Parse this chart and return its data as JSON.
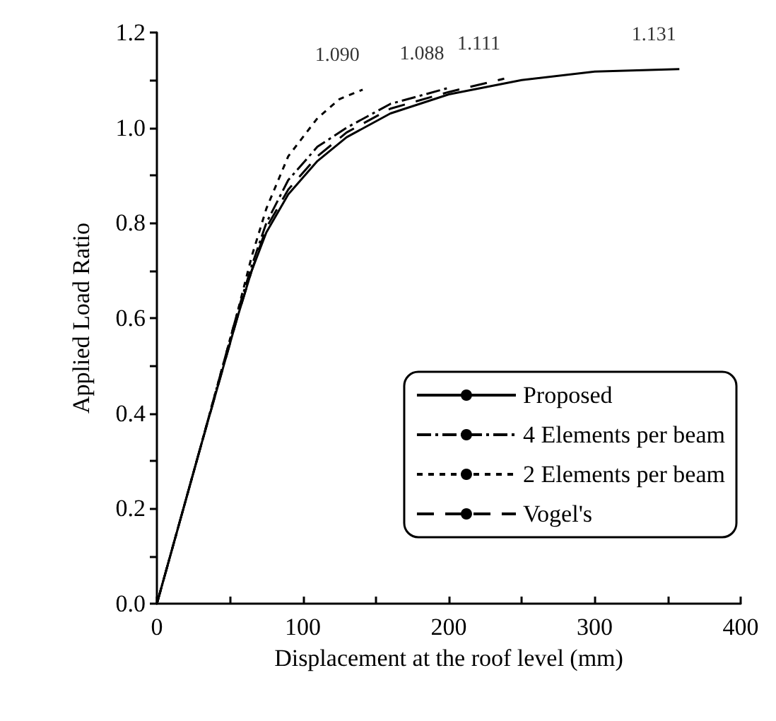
{
  "chart_data": {
    "type": "line",
    "xlabel": "Displacement at the roof level (mm)",
    "ylabel": "Applied Load Ratio",
    "xlim": [
      0,
      400
    ],
    "xticks": [
      0,
      {
        "value": 50,
        "label": null
      },
      100,
      {
        "value": 150,
        "label": null
      },
      200,
      {
        "value": 250,
        "label": null
      },
      300,
      {
        "value": 350,
        "label": null
      },
      400
    ],
    "ylim": [
      0,
      1.2
    ],
    "yticks": [
      {
        "value": 0,
        "label": "0.0"
      },
      {
        "value": 0.1,
        "label": null
      },
      0.2,
      {
        "value": 0.3,
        "label": null
      },
      0.4,
      {
        "value": 0.5,
        "label": null
      },
      0.6,
      {
        "value": 0.7,
        "label": null
      },
      0.8,
      {
        "value": 0.9,
        "label": null
      },
      {
        "value": 1,
        "label": "1.0"
      },
      {
        "value": 1.1,
        "label": null
      },
      1.2
    ],
    "grid": false,
    "legend": "right",
    "marker": "none",
    "series": [
      {
        "name": "Proposed",
        "color": "#000000",
        "line_style": "solid",
        "x": [
          0,
          30,
          55,
          65,
          75,
          90,
          110,
          130,
          160,
          200,
          250,
          300,
          358
        ],
        "values": [
          0,
          0.33,
          0.6,
          0.7,
          0.78,
          0.86,
          0.93,
          0.98,
          1.03,
          1.07,
          1.1,
          1.118,
          1.123
        ]
      },
      {
        "name": "4 Elements per beam",
        "color": "#000000",
        "line_style": "dashdot",
        "x": [
          0,
          30,
          55,
          65,
          75,
          90,
          110,
          130,
          160,
          199
        ],
        "values": [
          0,
          0.33,
          0.61,
          0.71,
          0.8,
          0.89,
          0.96,
          1.0,
          1.05,
          1.083
        ]
      },
      {
        "name": "2 Elements per beam",
        "color": "#000000",
        "line_style": "dashed",
        "x": [
          0,
          30,
          55,
          65,
          75,
          90,
          110,
          125,
          141
        ],
        "values": [
          0,
          0.33,
          0.61,
          0.73,
          0.83,
          0.94,
          1.02,
          1.06,
          1.08
        ]
      },
      {
        "name": "Vogel's",
        "color": "#000000",
        "line_style": "longdash",
        "x": [
          0,
          30,
          55,
          65,
          75,
          90,
          110,
          130,
          160,
          200,
          238
        ],
        "values": [
          0,
          0.33,
          0.6,
          0.7,
          0.79,
          0.87,
          0.94,
          0.99,
          1.04,
          1.075,
          1.103
        ]
      }
    ],
    "annotations": [
      {
        "text": "1.090",
        "x": 141,
        "y": 1.08
      },
      {
        "text": "1.088",
        "x": 199,
        "y": 1.083
      },
      {
        "text": "1.111",
        "x": 238,
        "y": 1.103
      },
      {
        "text": "1.131",
        "x": 358,
        "y": 1.123
      }
    ]
  }
}
